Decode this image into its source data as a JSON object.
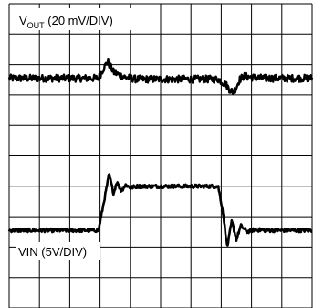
{
  "chart_data": {
    "type": "line",
    "title": "",
    "grid": true,
    "grid_divisions": {
      "x": 10,
      "y": 10
    },
    "x_range_div": [
      0,
      10
    ],
    "y_range_div": [
      0,
      10
    ],
    "colors": {
      "trace": "#000000",
      "grid": "#000000",
      "background": "#ffffff"
    },
    "series": [
      {
        "name": "VOUT",
        "label_main": "V",
        "label_sub": "OUT",
        "label_rest": " (20 mV/DIV)",
        "baseline_div": 7.55,
        "noise_div": 0.12,
        "x_div": [
          0,
          2.95,
          3.1,
          3.25,
          3.45,
          3.65,
          3.85,
          4.2,
          4.6,
          5.5,
          6.4,
          6.9,
          7.15,
          7.3,
          7.4,
          7.5,
          7.6,
          7.75,
          8.0,
          8.4,
          10
        ],
        "level_div": [
          7.55,
          7.55,
          7.85,
          8.1,
          7.75,
          7.65,
          7.58,
          7.52,
          7.52,
          7.52,
          7.52,
          7.52,
          7.35,
          7.15,
          7.1,
          7.25,
          7.5,
          7.62,
          7.58,
          7.55,
          7.55
        ]
      },
      {
        "name": "VIN",
        "label_main": "VIN (5V/DIV)",
        "baseline_div": 2.55,
        "noise_div": 0.06,
        "x_div": [
          0,
          2.95,
          3.15,
          3.3,
          3.45,
          3.55,
          3.7,
          3.85,
          4.0,
          4.2,
          4.6,
          6.9,
          7.05,
          7.2,
          7.35,
          7.5,
          7.65,
          7.85,
          8.1,
          8.5,
          10
        ],
        "level_div": [
          2.55,
          2.55,
          3.6,
          4.4,
          3.75,
          4.15,
          3.85,
          4.05,
          3.95,
          4.0,
          4.0,
          4.0,
          3.2,
          2.0,
          2.85,
          2.25,
          2.7,
          2.5,
          2.57,
          2.55,
          2.55
        ]
      }
    ]
  }
}
